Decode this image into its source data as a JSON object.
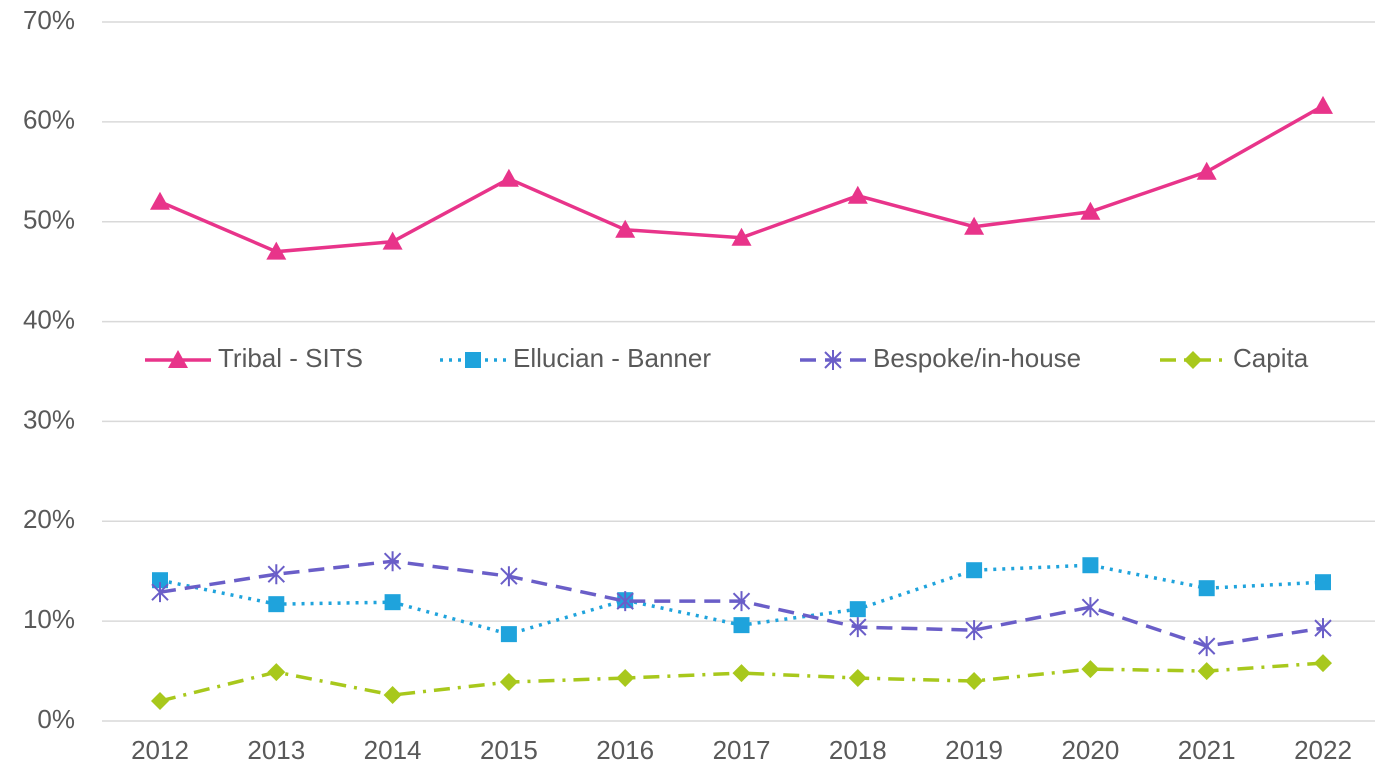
{
  "chart_data": {
    "type": "line",
    "categories": [
      "2012",
      "2013",
      "2014",
      "2015",
      "2016",
      "2017",
      "2018",
      "2019",
      "2020",
      "2021",
      "2022"
    ],
    "series": [
      {
        "name": "Tribal - SITS",
        "color": "#e8348a",
        "marker": "triangle",
        "line_style": "solid",
        "values": [
          52,
          47,
          48,
          54.3,
          49.2,
          48.4,
          52.6,
          49.5,
          51,
          55,
          61.6
        ]
      },
      {
        "name": "Ellucian - Banner",
        "color": "#1fa3dc",
        "marker": "square",
        "line_style": "dotted",
        "values": [
          14.1,
          11.7,
          11.9,
          8.7,
          12.1,
          9.6,
          11.2,
          15.1,
          15.6,
          13.3,
          13.9
        ]
      },
      {
        "name": "Bespoke/in-house",
        "color": "#6a5ec8",
        "marker": "asterisk",
        "line_style": "dashed",
        "values": [
          12.9,
          14.7,
          16,
          14.5,
          12,
          12,
          9.4,
          9.1,
          11.4,
          7.5,
          9.3
        ]
      },
      {
        "name": "Capita",
        "color": "#a8c81c",
        "marker": "diamond",
        "line_style": "dashdot",
        "values": [
          2,
          4.9,
          2.6,
          3.9,
          4.3,
          4.8,
          4.3,
          4,
          5.2,
          5,
          5.8
        ]
      }
    ],
    "ylim": [
      0,
      70
    ],
    "yticks": [
      {
        "value": 0,
        "label": "0%"
      },
      {
        "value": 10,
        "label": "10%"
      },
      {
        "value": 20,
        "label": "20%"
      },
      {
        "value": 30,
        "label": "30%"
      },
      {
        "value": 40,
        "label": "40%"
      },
      {
        "value": 50,
        "label": "50%"
      },
      {
        "value": 60,
        "label": "60%"
      },
      {
        "value": 70,
        "label": "70%"
      }
    ],
    "grid": true,
    "legend": "center"
  }
}
